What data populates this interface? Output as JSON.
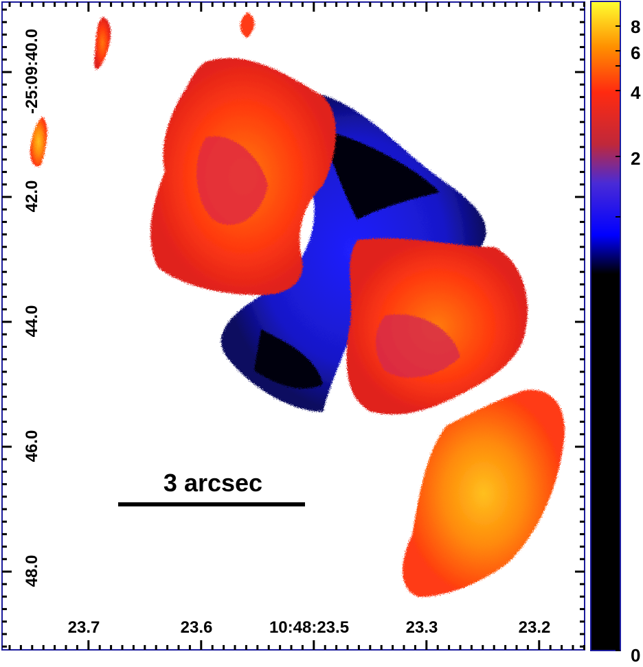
{
  "image": {
    "description_free": true,
    "colormap_stops": [
      "#000000",
      "#0b0b6e",
      "#1f1fff",
      "#4a2bd6",
      "#8c2ea8",
      "#d42a4d",
      "#ff2a10",
      "#ff6a00",
      "#ffa800",
      "#ffe000",
      "#ffff40"
    ],
    "frame_color": "#1a1a9c",
    "scalebar": {
      "label": "3 arcsec"
    }
  },
  "x_axis": {
    "tick_labels": [
      "23.7",
      "23.6",
      "10:48:23.5",
      "23.3",
      "23.2"
    ]
  },
  "y_axis": {
    "tick_labels": [
      "-25:09:40.0",
      "42.0",
      "44.0",
      "46.0",
      "48.0"
    ]
  },
  "colorbar": {
    "tick_labels": [
      "8",
      "6",
      "4",
      "2",
      "0"
    ]
  }
}
